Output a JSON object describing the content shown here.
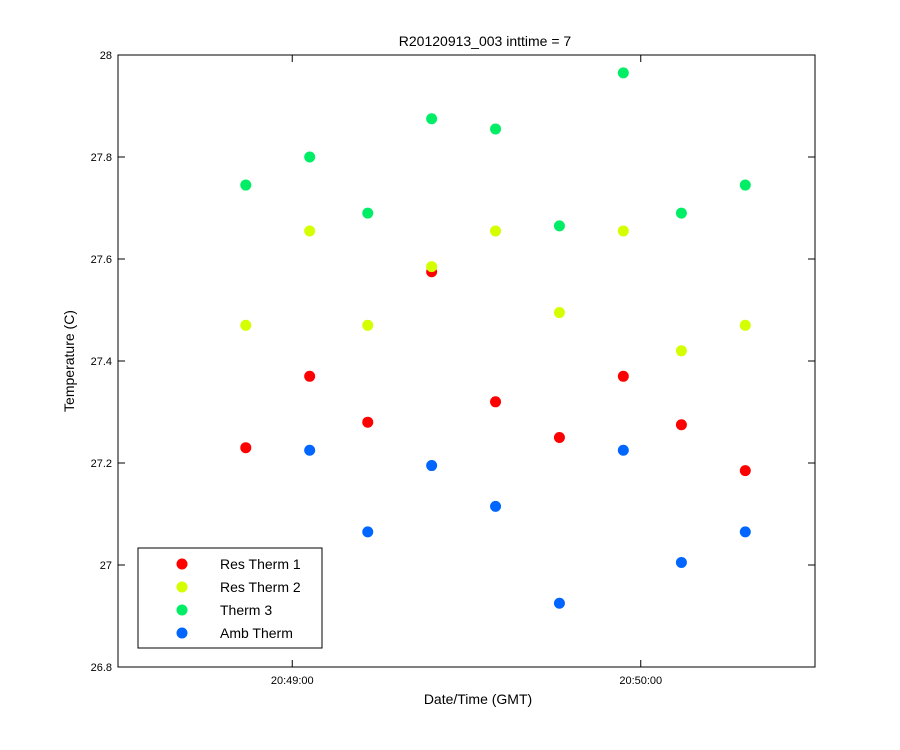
{
  "chart_data": {
    "type": "scatter",
    "title": "R20120913_003 inttime = 7",
    "xlabel": "Date/Time (GMT)",
    "ylabel": "Temperature (C)",
    "xlim": [
      "20:48:30",
      "20:50:30"
    ],
    "ylim": [
      26.8,
      28
    ],
    "xticks": [
      {
        "value": "20:49:00",
        "label": "20:49:00"
      },
      {
        "value": "20:50:00",
        "label": "20:50:00"
      }
    ],
    "yticks": [
      26.8,
      27,
      27.2,
      27.4,
      27.6,
      27.8,
      28
    ],
    "ytick_labels": [
      "26.8",
      "27",
      "27.2",
      "27.4",
      "27.6",
      "27.8",
      "28"
    ],
    "grid": false,
    "legend_position": "bottom-left",
    "series": [
      {
        "name": "Res Therm 1",
        "color": "#ff0000",
        "points": [
          {
            "x": "20:48:52",
            "y": 27.23
          },
          {
            "x": "20:49:03",
            "y": 27.37
          },
          {
            "x": "20:49:13",
            "y": 27.28
          },
          {
            "x": "20:49:24",
            "y": 27.575
          },
          {
            "x": "20:49:35",
            "y": 27.32
          },
          {
            "x": "20:49:46",
            "y": 27.25
          },
          {
            "x": "20:49:57",
            "y": 27.37
          },
          {
            "x": "20:50:07",
            "y": 27.275
          },
          {
            "x": "20:50:18",
            "y": 27.185
          }
        ]
      },
      {
        "name": "Res Therm 2",
        "color": "#d4ff00",
        "points": [
          {
            "x": "20:48:52",
            "y": 27.47
          },
          {
            "x": "20:49:03",
            "y": 27.655
          },
          {
            "x": "20:49:13",
            "y": 27.47
          },
          {
            "x": "20:49:24",
            "y": 27.585
          },
          {
            "x": "20:49:35",
            "y": 27.655
          },
          {
            "x": "20:49:46",
            "y": 27.495
          },
          {
            "x": "20:49:57",
            "y": 27.655
          },
          {
            "x": "20:50:07",
            "y": 27.42
          },
          {
            "x": "20:50:18",
            "y": 27.47
          }
        ]
      },
      {
        "name": "Therm 3",
        "color": "#00ee66",
        "points": [
          {
            "x": "20:48:52",
            "y": 27.745
          },
          {
            "x": "20:49:03",
            "y": 27.8
          },
          {
            "x": "20:49:13",
            "y": 27.69
          },
          {
            "x": "20:49:24",
            "y": 27.875
          },
          {
            "x": "20:49:35",
            "y": 27.855
          },
          {
            "x": "20:49:46",
            "y": 27.665
          },
          {
            "x": "20:49:57",
            "y": 27.965
          },
          {
            "x": "20:50:07",
            "y": 27.69
          },
          {
            "x": "20:50:18",
            "y": 27.745
          }
        ]
      },
      {
        "name": "Amb Therm",
        "color": "#0066ff",
        "points": [
          {
            "x": "20:49:03",
            "y": 27.225
          },
          {
            "x": "20:49:13",
            "y": 27.065
          },
          {
            "x": "20:49:24",
            "y": 27.195
          },
          {
            "x": "20:49:35",
            "y": 27.115
          },
          {
            "x": "20:49:46",
            "y": 26.925
          },
          {
            "x": "20:49:57",
            "y": 27.225
          },
          {
            "x": "20:50:07",
            "y": 27.005
          },
          {
            "x": "20:50:18",
            "y": 27.065
          }
        ]
      }
    ]
  }
}
